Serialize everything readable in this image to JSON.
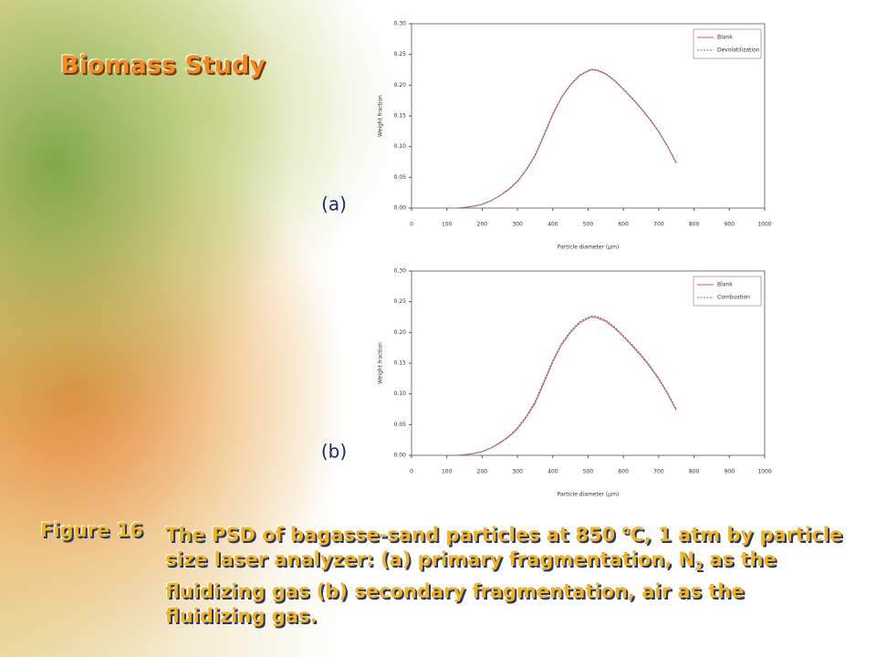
{
  "slide": {
    "title": "Biomass Study",
    "caption": {
      "label": "Figure 16",
      "text_1": "The PSD of bagasse-sand particles at 850 ",
      "superscript": "o",
      "text_2": "C, 1  atm  by particle size laser analyzer: (a) primary fragmentation, N",
      "subscript": "2",
      "text_3": " as the  fluidizing  gas (b) secondary  fragmentation, air as the fluidizing gas."
    }
  },
  "chart_data": [
    {
      "type": "line",
      "panel_label": "(a)",
      "x_label": "Particle diameter (µm)",
      "y_label": "Weight fraction",
      "x": [
        130,
        150,
        175,
        200,
        225,
        250,
        275,
        300,
        325,
        350,
        375,
        400,
        425,
        450,
        475,
        500,
        510,
        525,
        550,
        575,
        600,
        625,
        650,
        675,
        700,
        725,
        750
      ],
      "series": [
        {
          "name": "Blank",
          "color": "#e05050",
          "dash": "solid",
          "values": [
            0.0,
            0.001,
            0.003,
            0.006,
            0.012,
            0.02,
            0.03,
            0.043,
            0.062,
            0.085,
            0.118,
            0.152,
            0.18,
            0.2,
            0.215,
            0.223,
            0.225,
            0.224,
            0.218,
            0.207,
            0.193,
            0.178,
            0.162,
            0.144,
            0.124,
            0.1,
            0.073
          ]
        },
        {
          "name": "Devolatilization",
          "color": "#6070a0",
          "dash": "dashed",
          "values": [
            0.0,
            0.001,
            0.003,
            0.006,
            0.012,
            0.02,
            0.031,
            0.044,
            0.063,
            0.087,
            0.12,
            0.154,
            0.181,
            0.201,
            0.216,
            0.224,
            0.226,
            0.225,
            0.219,
            0.208,
            0.194,
            0.179,
            0.163,
            0.145,
            0.125,
            0.101,
            0.074
          ]
        }
      ],
      "xlim": [
        0,
        1000
      ],
      "xticks": [
        0,
        100,
        200,
        300,
        400,
        500,
        600,
        700,
        800,
        900,
        1000
      ],
      "ylim": [
        0,
        0.3
      ],
      "yticks": [
        {
          "value": 0,
          "label": "0.00"
        },
        {
          "value": 0.05,
          "label": "0.05"
        },
        {
          "value": 0.1,
          "label": "0.10"
        },
        {
          "value": 0.15,
          "label": "0.15"
        },
        {
          "value": 0.2,
          "label": "0.20"
        },
        {
          "value": 0.25,
          "label": "0.25"
        },
        {
          "value": 0.3,
          "label": "0.30"
        }
      ],
      "legend": "top-right"
    },
    {
      "type": "line",
      "panel_label": "(b)",
      "x_label": "Particle diameter (µm)",
      "y_label": "Weight fraction",
      "x": [
        130,
        150,
        175,
        200,
        225,
        250,
        275,
        300,
        325,
        350,
        375,
        400,
        425,
        450,
        475,
        500,
        510,
        525,
        550,
        575,
        600,
        625,
        650,
        675,
        700,
        725,
        750
      ],
      "series": [
        {
          "name": "Blank",
          "color": "#e05050",
          "dash": "solid",
          "values": [
            0.0,
            0.001,
            0.003,
            0.006,
            0.012,
            0.02,
            0.03,
            0.043,
            0.062,
            0.085,
            0.118,
            0.152,
            0.18,
            0.2,
            0.215,
            0.223,
            0.225,
            0.224,
            0.218,
            0.207,
            0.193,
            0.178,
            0.162,
            0.144,
            0.124,
            0.1,
            0.073
          ]
        },
        {
          "name": "Combustion",
          "color": "#6070a0",
          "dash": "dashed",
          "values": [
            0.0,
            0.001,
            0.003,
            0.006,
            0.012,
            0.021,
            0.031,
            0.045,
            0.064,
            0.088,
            0.121,
            0.155,
            0.182,
            0.202,
            0.217,
            0.225,
            0.227,
            0.226,
            0.22,
            0.209,
            0.195,
            0.18,
            0.164,
            0.146,
            0.126,
            0.102,
            0.075
          ]
        }
      ],
      "xlim": [
        0,
        1000
      ],
      "xticks": [
        0,
        100,
        200,
        300,
        400,
        500,
        600,
        700,
        800,
        900,
        1000
      ],
      "ylim": [
        0,
        0.3
      ],
      "yticks": [
        {
          "value": 0,
          "label": "0.00"
        },
        {
          "value": 0.05,
          "label": "0.05"
        },
        {
          "value": 0.1,
          "label": "0.10"
        },
        {
          "value": 0.15,
          "label": "0.15"
        },
        {
          "value": 0.2,
          "label": "0.20"
        },
        {
          "value": 0.25,
          "label": "0.25"
        },
        {
          "value": 0.3,
          "label": "0.30"
        }
      ],
      "legend": "top-right"
    }
  ]
}
